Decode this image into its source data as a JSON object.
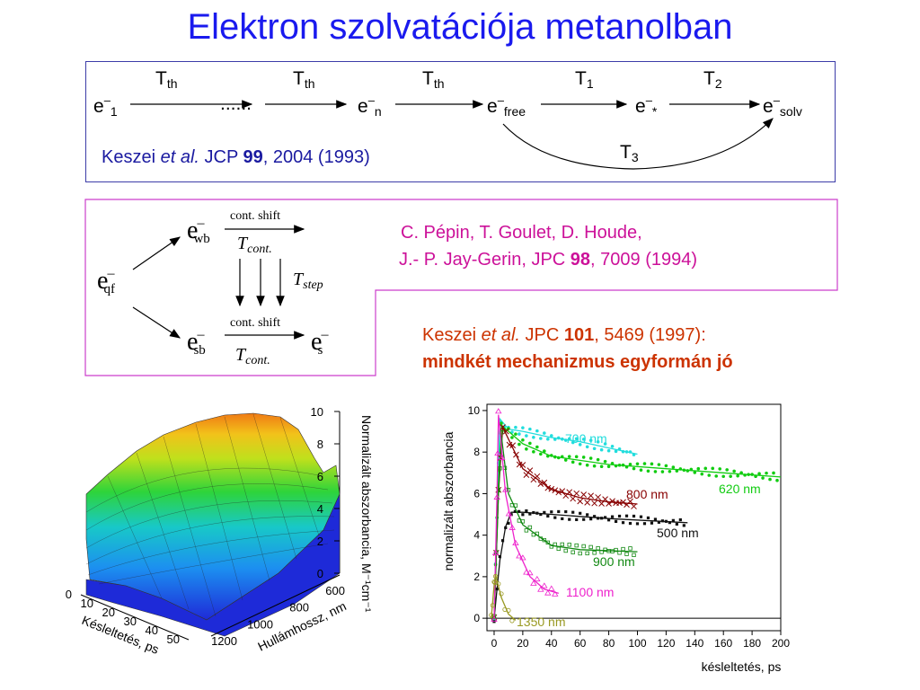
{
  "title": "Elektron szolvatációja metanolban",
  "scheme1": {
    "species": [
      {
        "base": "e",
        "sup": "–",
        "sub": "1"
      },
      {
        "base": "......",
        "sup": "",
        "sub": ""
      },
      {
        "base": "e",
        "sup": "–",
        "sub": "n"
      },
      {
        "base": "e",
        "sup": "–",
        "sub": "free"
      },
      {
        "base": "e",
        "sup": "–",
        "sub": "*"
      },
      {
        "base": "e",
        "sup": "–",
        "sub": "solv"
      }
    ],
    "transitions": [
      {
        "base": "T",
        "sub": "th"
      },
      {
        "base": "T",
        "sub": "th"
      },
      {
        "base": "T",
        "sub": "th"
      },
      {
        "base": "T",
        "sub": "1"
      },
      {
        "base": "T",
        "sub": "2"
      }
    ],
    "bypass": {
      "base": "T",
      "sub": "3"
    },
    "reference": {
      "authors": "Keszei",
      "etal": "et al.",
      "journal": "JCP",
      "volume": "99",
      "rest": ", 2004 (1993)"
    }
  },
  "scheme2": {
    "eqf": {
      "base": "e",
      "sup": "–",
      "sub": "qf"
    },
    "ewb": {
      "base": "e",
      "sup": "–",
      "sub": "wb"
    },
    "esb": {
      "base": "e",
      "sup": "–",
      "sub": "sb"
    },
    "es": {
      "base": "e",
      "sup": "–",
      "sub": "s"
    },
    "cont_shift": "cont. shift",
    "t_cont": {
      "base": "T",
      "sub": "cont."
    },
    "t_step": {
      "base": "T",
      "sub": "step"
    }
  },
  "pepin_ref": {
    "line1": "C. Pépin, T. Goulet, D. Houde,",
    "line2_pre": "J.- P. Jay-Gerin, JPC ",
    "volume": "98",
    "line2_post": ", 7009 (1994)"
  },
  "keszei_ref": {
    "authors": "Keszei ",
    "etal": "et al.",
    "journal": " JPC ",
    "volume": "101",
    "rest": ", 5469 (1997):",
    "conclusion": "mindkét mechanizmus egyformán jó"
  },
  "colors": {
    "title": "#1a1aee",
    "box1": "#3c3ca8",
    "box2": "#cc3fcc",
    "pepin": "#cc1199",
    "keszei2": "#cc3300"
  },
  "chart_data": [
    {
      "type": "surface3d",
      "z_label": "Normalizált abszorbancia, M⁻¹cm⁻¹",
      "z_ticks": [
        "0",
        "2",
        "4",
        "6",
        "8",
        "10"
      ],
      "x_label": "Késleltetés, ps",
      "x_ticks": [
        "0",
        "10",
        "20",
        "30",
        "40",
        "50"
      ],
      "y_label": "Hullámhossz, nm",
      "y_ticks": [
        "600",
        "800",
        "1000",
        "1200"
      ]
    },
    {
      "type": "scatter",
      "xlabel": "késleltetés, ps",
      "ylabel": "normalizált abszorbancia",
      "xlim": [
        -5,
        200
      ],
      "ylim": [
        -0.6,
        10.3
      ],
      "x_ticks": [
        0,
        20,
        40,
        60,
        80,
        100,
        120,
        140,
        160,
        180,
        200
      ],
      "y_ticks": [
        0,
        2,
        4,
        6,
        8,
        10
      ],
      "series": [
        {
          "name": "700 nm",
          "color": "#22dddd",
          "marker": "dot",
          "peak": 9.6,
          "tau": 600,
          "x_end": 100,
          "points": [
            [
              0,
              0
            ],
            [
              2,
              5
            ],
            [
              4,
              9.6
            ],
            [
              10,
              9.1
            ],
            [
              20,
              9
            ],
            [
              40,
              8.7
            ],
            [
              60,
              8.5
            ],
            [
              80,
              8.2
            ],
            [
              100,
              7.9
            ]
          ]
        },
        {
          "name": "620 nm",
          "color": "#11cc11",
          "marker": "dot",
          "peak": 9.3,
          "tau": 700,
          "x_end": 200,
          "points": [
            [
              0,
              0
            ],
            [
              2,
              5
            ],
            [
              5,
              9.3
            ],
            [
              20,
              8.4
            ],
            [
              40,
              7.8
            ],
            [
              80,
              7.4
            ],
            [
              120,
              7.2
            ],
            [
              160,
              7
            ],
            [
              200,
              6.8
            ]
          ]
        },
        {
          "name": "800 nm",
          "color": "#880000",
          "marker": "x",
          "peak": 9.2,
          "tau": 20,
          "x_end": 100,
          "points": [
            [
              0,
              0
            ],
            [
              3,
              6
            ],
            [
              6,
              9.2
            ],
            [
              20,
              7.2
            ],
            [
              40,
              6.2
            ],
            [
              60,
              5.8
            ],
            [
              80,
              5.6
            ],
            [
              100,
              5.5
            ]
          ]
        },
        {
          "name": "500 nm",
          "color": "#111111",
          "marker": "square",
          "peak": 5.2,
          "tau": 300,
          "x_end": 135,
          "points": [
            [
              0,
              0
            ],
            [
              4,
              2.8
            ],
            [
              8,
              4.4
            ],
            [
              12,
              5.1
            ],
            [
              20,
              5.1
            ],
            [
              40,
              5
            ],
            [
              80,
              4.8
            ],
            [
              135,
              4.6
            ]
          ]
        },
        {
          "name": "900 nm",
          "color": "#118811",
          "marker": "square-open",
          "peak": 8.8,
          "tau": 10,
          "x_end": 100,
          "points": [
            [
              0,
              0
            ],
            [
              3,
              6
            ],
            [
              5,
              8.8
            ],
            [
              10,
              6
            ],
            [
              20,
              4.5
            ],
            [
              40,
              3.5
            ],
            [
              60,
              3.3
            ],
            [
              100,
              3.2
            ]
          ]
        },
        {
          "name": "1100 nm",
          "color": "#ee22cc",
          "marker": "triangle",
          "peak": 9.8,
          "tau": 8,
          "x_end": 45,
          "points": [
            [
              0,
              0
            ],
            [
              2,
              6
            ],
            [
              3,
              9.8
            ],
            [
              8,
              6
            ],
            [
              15,
              3.5
            ],
            [
              25,
              2
            ],
            [
              35,
              1.4
            ],
            [
              45,
              1.2
            ]
          ]
        },
        {
          "name": "1350 nm",
          "color": "#999922",
          "marker": "circle-open",
          "peak": 2.1,
          "tau": 5,
          "x_end": 15,
          "points": [
            [
              -2,
              0
            ],
            [
              0,
              1.6
            ],
            [
              1,
              2.1
            ],
            [
              5,
              1
            ],
            [
              10,
              0.2
            ],
            [
              15,
              -0.1
            ]
          ]
        }
      ]
    }
  ]
}
